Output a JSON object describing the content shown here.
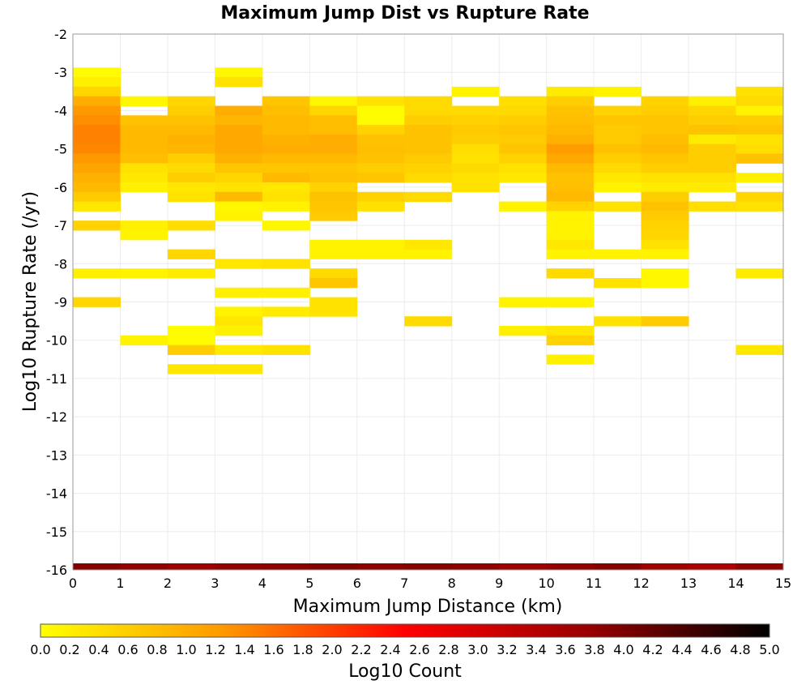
{
  "chart_data": {
    "type": "heatmap",
    "title": "Maximum Jump Dist vs Rupture Rate",
    "xlabel": "Maximum Jump Distance (km)",
    "ylabel": "Log10 Rupture Rate (/yr)",
    "xlim": [
      0,
      15
    ],
    "ylim": [
      -16,
      -2
    ],
    "x_ticks": [
      "0",
      "1",
      "2",
      "3",
      "4",
      "5",
      "6",
      "7",
      "8",
      "9",
      "10",
      "11",
      "12",
      "13",
      "14",
      "15"
    ],
    "y_ticks": [
      "-2",
      "-3",
      "-4",
      "-5",
      "-6",
      "-7",
      "-8",
      "-9",
      "-10",
      "-11",
      "-12",
      "-13",
      "-14",
      "-15",
      "-16"
    ],
    "colorbar": {
      "label": "Log10 Count",
      "range": [
        0,
        5
      ],
      "ticks": [
        "0.0",
        "0.2",
        "0.4",
        "0.6",
        "0.8",
        "1.0",
        "1.2",
        "1.4",
        "1.6",
        "1.8",
        "2.0",
        "2.2",
        "2.4",
        "2.6",
        "2.8",
        "3.0",
        "3.2",
        "3.4",
        "3.6",
        "3.8",
        "4.0",
        "4.2",
        "4.4",
        "4.6",
        "4.8",
        "5.0"
      ],
      "colors": [
        "#ffff00",
        "#ff9900",
        "#ff0000",
        "#990000",
        "#000000"
      ]
    },
    "grid": true,
    "bin_width_x": 1,
    "bin_height_y": 0.25,
    "columns": [
      {
        "x": 0,
        "cells": [
          [
            -3.0,
            0.05
          ],
          [
            -3.25,
            0.2
          ],
          [
            -3.5,
            0.5
          ],
          [
            -3.75,
            1.0
          ],
          [
            -4.0,
            1.25
          ],
          [
            -4.25,
            1.35
          ],
          [
            -4.5,
            1.45
          ],
          [
            -4.75,
            1.45
          ],
          [
            -5.0,
            1.4
          ],
          [
            -5.25,
            1.25
          ],
          [
            -5.5,
            1.1
          ],
          [
            -5.75,
            0.95
          ],
          [
            -6.0,
            0.85
          ],
          [
            -6.25,
            0.65
          ],
          [
            -6.5,
            0.3
          ],
          [
            -7.0,
            0.55
          ],
          [
            -8.25,
            0.2
          ],
          [
            -9.0,
            0.5
          ]
        ]
      },
      {
        "x": 1,
        "cells": [
          [
            -3.75,
            0.1
          ],
          [
            -4.25,
            0.75
          ],
          [
            -4.5,
            0.85
          ],
          [
            -4.75,
            0.85
          ],
          [
            -5.0,
            0.85
          ],
          [
            -5.25,
            0.8
          ],
          [
            -5.5,
            0.35
          ],
          [
            -5.75,
            0.3
          ],
          [
            -6.0,
            0.2
          ],
          [
            -7.0,
            0.2
          ],
          [
            -7.25,
            0.15
          ],
          [
            -8.25,
            0.15
          ],
          [
            -10.0,
            0.15
          ]
        ]
      },
      {
        "x": 2,
        "cells": [
          [
            -3.75,
            0.5
          ],
          [
            -4.0,
            0.6
          ],
          [
            -4.25,
            0.75
          ],
          [
            -4.5,
            0.85
          ],
          [
            -4.75,
            0.95
          ],
          [
            -5.0,
            0.9
          ],
          [
            -5.25,
            0.6
          ],
          [
            -5.5,
            0.45
          ],
          [
            -5.75,
            0.6
          ],
          [
            -6.0,
            0.3
          ],
          [
            -6.25,
            0.35
          ],
          [
            -7.0,
            0.4
          ],
          [
            -7.75,
            0.5
          ],
          [
            -8.25,
            0.25
          ],
          [
            -9.75,
            0.05
          ],
          [
            -10.0,
            0.05
          ],
          [
            -10.25,
            0.6
          ],
          [
            -10.75,
            0.3
          ]
        ]
      },
      {
        "x": 3,
        "cells": [
          [
            -3.0,
            0.1
          ],
          [
            -3.25,
            0.35
          ],
          [
            -4.0,
            1.0
          ],
          [
            -4.25,
            0.9
          ],
          [
            -4.5,
            1.05
          ],
          [
            -4.75,
            1.05
          ],
          [
            -5.0,
            1.05
          ],
          [
            -5.25,
            0.95
          ],
          [
            -5.5,
            0.7
          ],
          [
            -5.75,
            0.5
          ],
          [
            -6.0,
            0.35
          ],
          [
            -6.25,
            0.85
          ],
          [
            -6.5,
            0.1
          ],
          [
            -6.75,
            0.15
          ],
          [
            -8.0,
            0.3
          ],
          [
            -8.75,
            0.2
          ],
          [
            -9.25,
            0.15
          ],
          [
            -9.5,
            0.3
          ],
          [
            -9.75,
            0.2
          ],
          [
            -10.25,
            0.25
          ],
          [
            -10.75,
            0.3
          ]
        ]
      },
      {
        "x": 4,
        "cells": [
          [
            -3.75,
            0.7
          ],
          [
            -4.0,
            0.8
          ],
          [
            -4.25,
            0.85
          ],
          [
            -4.5,
            0.85
          ],
          [
            -4.75,
            0.95
          ],
          [
            -5.0,
            1.0
          ],
          [
            -5.25,
            0.85
          ],
          [
            -5.5,
            0.7
          ],
          [
            -5.75,
            0.85
          ],
          [
            -6.0,
            0.3
          ],
          [
            -6.25,
            0.35
          ],
          [
            -6.5,
            0.15
          ],
          [
            -7.0,
            0.1
          ],
          [
            -8.0,
            0.35
          ],
          [
            -8.75,
            0.2
          ],
          [
            -9.25,
            0.25
          ],
          [
            -10.25,
            0.35
          ]
        ]
      },
      {
        "x": 5,
        "cells": [
          [
            -3.75,
            0.1
          ],
          [
            -4.0,
            0.5
          ],
          [
            -4.25,
            0.8
          ],
          [
            -4.5,
            0.8
          ],
          [
            -4.75,
            1.0
          ],
          [
            -5.0,
            1.0
          ],
          [
            -5.25,
            0.85
          ],
          [
            -5.5,
            0.7
          ],
          [
            -5.75,
            0.75
          ],
          [
            -6.0,
            0.55
          ],
          [
            -6.25,
            0.75
          ],
          [
            -6.5,
            0.7
          ],
          [
            -6.75,
            0.65
          ],
          [
            -7.5,
            0.15
          ],
          [
            -7.75,
            0.15
          ],
          [
            -8.25,
            0.45
          ],
          [
            -8.5,
            0.7
          ],
          [
            -9.0,
            0.35
          ],
          [
            -9.25,
            0.35
          ]
        ]
      },
      {
        "x": 6,
        "cells": [
          [
            -3.75,
            0.35
          ],
          [
            -4.0,
            0.05
          ],
          [
            -4.25,
            0.05
          ],
          [
            -4.5,
            0.55
          ],
          [
            -4.75,
            0.75
          ],
          [
            -5.0,
            0.8
          ],
          [
            -5.25,
            0.75
          ],
          [
            -5.5,
            0.6
          ],
          [
            -5.75,
            0.7
          ],
          [
            -6.25,
            0.55
          ],
          [
            -6.5,
            0.35
          ],
          [
            -7.5,
            0.15
          ],
          [
            -7.75,
            0.15
          ]
        ]
      },
      {
        "x": 7,
        "cells": [
          [
            -3.75,
            0.45
          ],
          [
            -4.0,
            0.45
          ],
          [
            -4.25,
            0.6
          ],
          [
            -4.5,
            0.75
          ],
          [
            -4.75,
            0.75
          ],
          [
            -5.0,
            0.75
          ],
          [
            -5.25,
            0.65
          ],
          [
            -5.5,
            0.55
          ],
          [
            -5.75,
            0.45
          ],
          [
            -6.25,
            0.45
          ],
          [
            -7.5,
            0.3
          ],
          [
            -7.75,
            0.15
          ],
          [
            -9.5,
            0.45
          ]
        ]
      },
      {
        "x": 8,
        "cells": [
          [
            -3.5,
            0.15
          ],
          [
            -4.0,
            0.45
          ],
          [
            -4.25,
            0.55
          ],
          [
            -4.5,
            0.65
          ],
          [
            -4.75,
            0.6
          ],
          [
            -5.0,
            0.4
          ],
          [
            -5.25,
            0.35
          ],
          [
            -5.5,
            0.45
          ],
          [
            -5.75,
            0.35
          ],
          [
            -6.0,
            0.35
          ]
        ]
      },
      {
        "x": 9,
        "cells": [
          [
            -3.75,
            0.4
          ],
          [
            -4.0,
            0.45
          ],
          [
            -4.25,
            0.6
          ],
          [
            -4.5,
            0.7
          ],
          [
            -4.75,
            0.65
          ],
          [
            -5.0,
            0.7
          ],
          [
            -5.25,
            0.55
          ],
          [
            -5.5,
            0.35
          ],
          [
            -5.75,
            0.3
          ],
          [
            -6.5,
            0.15
          ],
          [
            -9.0,
            0.15
          ],
          [
            -9.75,
            0.2
          ]
        ]
      },
      {
        "x": 10,
        "cells": [
          [
            -3.5,
            0.25
          ],
          [
            -3.75,
            0.6
          ],
          [
            -4.0,
            0.75
          ],
          [
            -4.25,
            0.8
          ],
          [
            -4.5,
            0.85
          ],
          [
            -4.75,
            0.95
          ],
          [
            -5.0,
            1.2
          ],
          [
            -5.25,
            1.05
          ],
          [
            -5.5,
            0.85
          ],
          [
            -5.75,
            0.75
          ],
          [
            -6.0,
            0.8
          ],
          [
            -6.25,
            0.85
          ],
          [
            -6.5,
            0.55
          ],
          [
            -6.75,
            0.15
          ],
          [
            -7.0,
            0.15
          ],
          [
            -7.25,
            0.15
          ],
          [
            -7.5,
            0.3
          ],
          [
            -7.75,
            0.15
          ],
          [
            -8.25,
            0.45
          ],
          [
            -9.0,
            0.15
          ],
          [
            -9.75,
            0.3
          ],
          [
            -10.0,
            0.55
          ],
          [
            -10.5,
            0.2
          ]
        ]
      },
      {
        "x": 11,
        "cells": [
          [
            -3.5,
            0.15
          ],
          [
            -4.0,
            0.55
          ],
          [
            -4.25,
            0.7
          ],
          [
            -4.5,
            0.65
          ],
          [
            -4.75,
            0.65
          ],
          [
            -5.0,
            0.75
          ],
          [
            -5.25,
            0.6
          ],
          [
            -5.5,
            0.45
          ],
          [
            -5.75,
            0.3
          ],
          [
            -6.0,
            0.15
          ],
          [
            -6.5,
            0.35
          ],
          [
            -7.75,
            0.15
          ],
          [
            -8.5,
            0.35
          ],
          [
            -9.5,
            0.35
          ]
        ]
      },
      {
        "x": 12,
        "cells": [
          [
            -3.75,
            0.55
          ],
          [
            -4.0,
            0.6
          ],
          [
            -4.25,
            0.7
          ],
          [
            -4.5,
            0.7
          ],
          [
            -4.75,
            0.8
          ],
          [
            -5.0,
            0.85
          ],
          [
            -5.25,
            0.7
          ],
          [
            -5.5,
            0.6
          ],
          [
            -5.75,
            0.35
          ],
          [
            -6.0,
            0.25
          ],
          [
            -6.25,
            0.6
          ],
          [
            -6.5,
            0.75
          ],
          [
            -6.75,
            0.65
          ],
          [
            -7.0,
            0.55
          ],
          [
            -7.25,
            0.5
          ],
          [
            -7.5,
            0.35
          ],
          [
            -7.75,
            0.15
          ],
          [
            -8.25,
            0.1
          ],
          [
            -8.5,
            0.1
          ],
          [
            -9.5,
            0.65
          ]
        ]
      },
      {
        "x": 13,
        "cells": [
          [
            -3.75,
            0.2
          ],
          [
            -4.0,
            0.5
          ],
          [
            -4.25,
            0.6
          ],
          [
            -4.5,
            0.75
          ],
          [
            -4.75,
            0.25
          ],
          [
            -5.0,
            0.6
          ],
          [
            -5.25,
            0.6
          ],
          [
            -5.5,
            0.6
          ],
          [
            -5.75,
            0.35
          ],
          [
            -6.0,
            0.25
          ],
          [
            -6.5,
            0.4
          ]
        ]
      },
      {
        "x": 14,
        "cells": [
          [
            -3.5,
            0.35
          ],
          [
            -3.75,
            0.45
          ],
          [
            -4.0,
            0.15
          ],
          [
            -4.25,
            0.6
          ],
          [
            -4.5,
            0.7
          ],
          [
            -4.75,
            0.35
          ],
          [
            -5.0,
            0.4
          ],
          [
            -5.25,
            0.75
          ],
          [
            -5.75,
            0.2
          ],
          [
            -6.25,
            0.5
          ],
          [
            -6.5,
            0.35
          ],
          [
            -8.25,
            0.25
          ],
          [
            -10.25,
            0.3
          ]
        ]
      }
    ],
    "bottom_row": {
      "y": -16,
      "values": [
        3.9,
        3.8,
        3.7,
        3.8,
        3.85,
        3.95,
        3.85,
        3.9,
        3.85,
        3.7,
        3.8,
        3.9,
        3.65,
        3.5,
        3.8
      ]
    }
  }
}
